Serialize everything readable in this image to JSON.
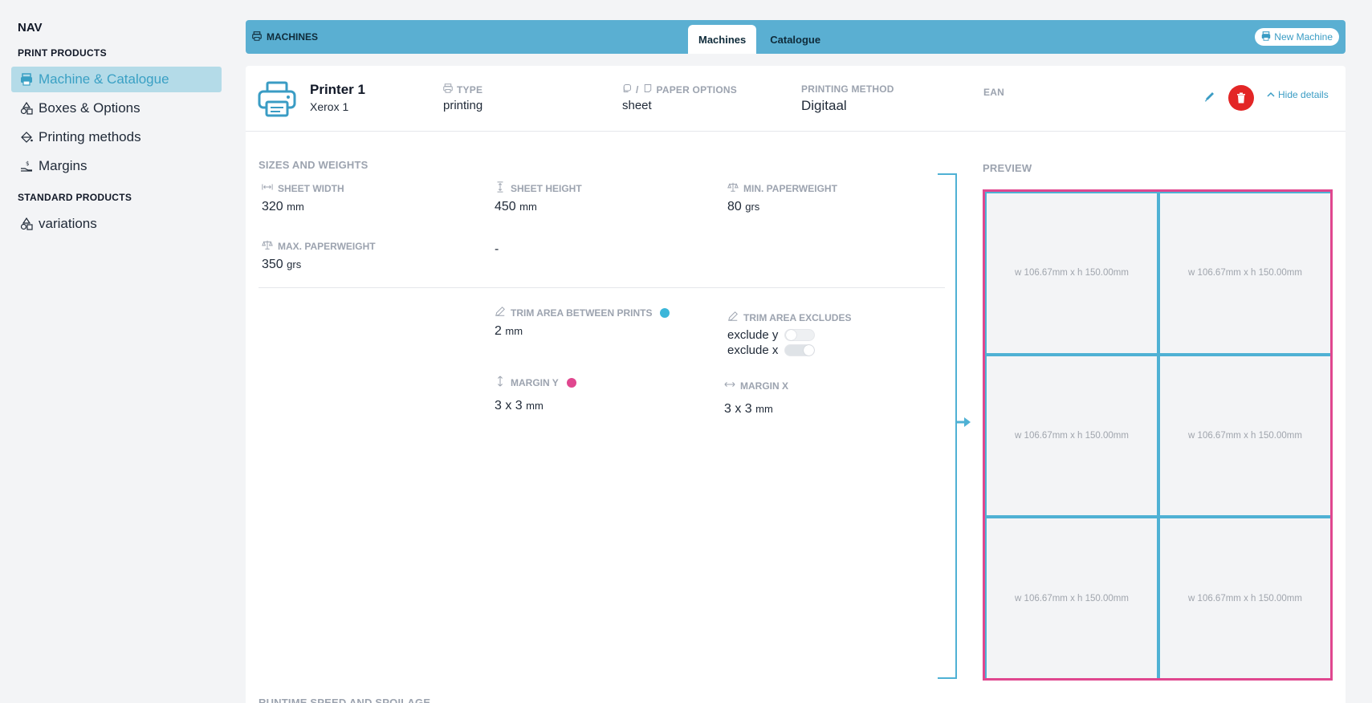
{
  "sidebar": {
    "nav_title": "NAV",
    "sections": [
      {
        "title": "PRINT PRODUCTS"
      },
      {
        "title": "STANDARD PRODUCTS"
      }
    ],
    "items": [
      {
        "label": "Machine & Catalogue",
        "icon": "printer-icon",
        "active": true
      },
      {
        "label": "Boxes & Options",
        "icon": "shapes-icon"
      },
      {
        "label": "Printing methods",
        "icon": "paint-bucket-icon"
      },
      {
        "label": "Margins",
        "icon": "hand-money-icon"
      },
      {
        "label": "variations",
        "icon": "shapes-icon"
      }
    ]
  },
  "topbar": {
    "title": "MACHINES",
    "tabs": [
      "Machines",
      "Catalogue"
    ],
    "active_tab": "Machines",
    "new_button": "New Machine",
    "color": "#5aafd2"
  },
  "machine": {
    "name": "Printer 1",
    "model": "Xerox 1",
    "type_label": "TYPE",
    "type_value": "printing",
    "paper_label": "PAPER OPTIONS",
    "paper_value": "sheet",
    "method_label": "PRINTING METHOD",
    "method_value": "Digitaal",
    "ean_label": "EAN",
    "hide_details": "Hide details"
  },
  "sizes": {
    "title": "SIZES AND WEIGHTS",
    "sheet_width_label": "SHEET WIDTH",
    "sheet_width": "320",
    "sheet_width_unit": "mm",
    "sheet_height_label": "SHEET HEIGHT",
    "sheet_height": "450",
    "sheet_height_unit": "mm",
    "min_weight_label": "MIN. PAPERWEIGHT",
    "min_weight": "80",
    "min_weight_unit": "grs",
    "max_weight_label": "MAX. PAPERWEIGHT",
    "max_weight": "350",
    "max_weight_unit": "grs",
    "empty_value": "-"
  },
  "trim": {
    "between_label": "TRIM AREA BETWEEN PRINTS",
    "between_value": "2",
    "between_unit": "mm",
    "between_dot_color": "#3bb6d9",
    "excludes_label": "TRIM AREA EXCLUDES",
    "exclude_y_label": "exclude y",
    "exclude_y_on": false,
    "exclude_x_label": "exclude x",
    "exclude_x_on": true,
    "margin_y_label": "MARGIN Y",
    "margin_y_value": "3 x 3",
    "margin_y_unit": "mm",
    "margin_y_dot_color": "#e0478f",
    "margin_x_label": "MARGIN X",
    "margin_x_value": "3 x 3",
    "margin_x_unit": "mm"
  },
  "preview": {
    "title": "PREVIEW",
    "cells": [
      "w 106.67mm x h 150.00mm",
      "w 106.67mm x h 150.00mm",
      "w 106.67mm x h 150.00mm",
      "w 106.67mm x h 150.00mm",
      "w 106.67mm x h 150.00mm",
      "w 106.67mm x h 150.00mm"
    ],
    "border_color": "#e0478f",
    "gutter_color": "#4fb1d4"
  },
  "bottom_section_title": "RUNTIME SPEED AND SPOILAGE"
}
